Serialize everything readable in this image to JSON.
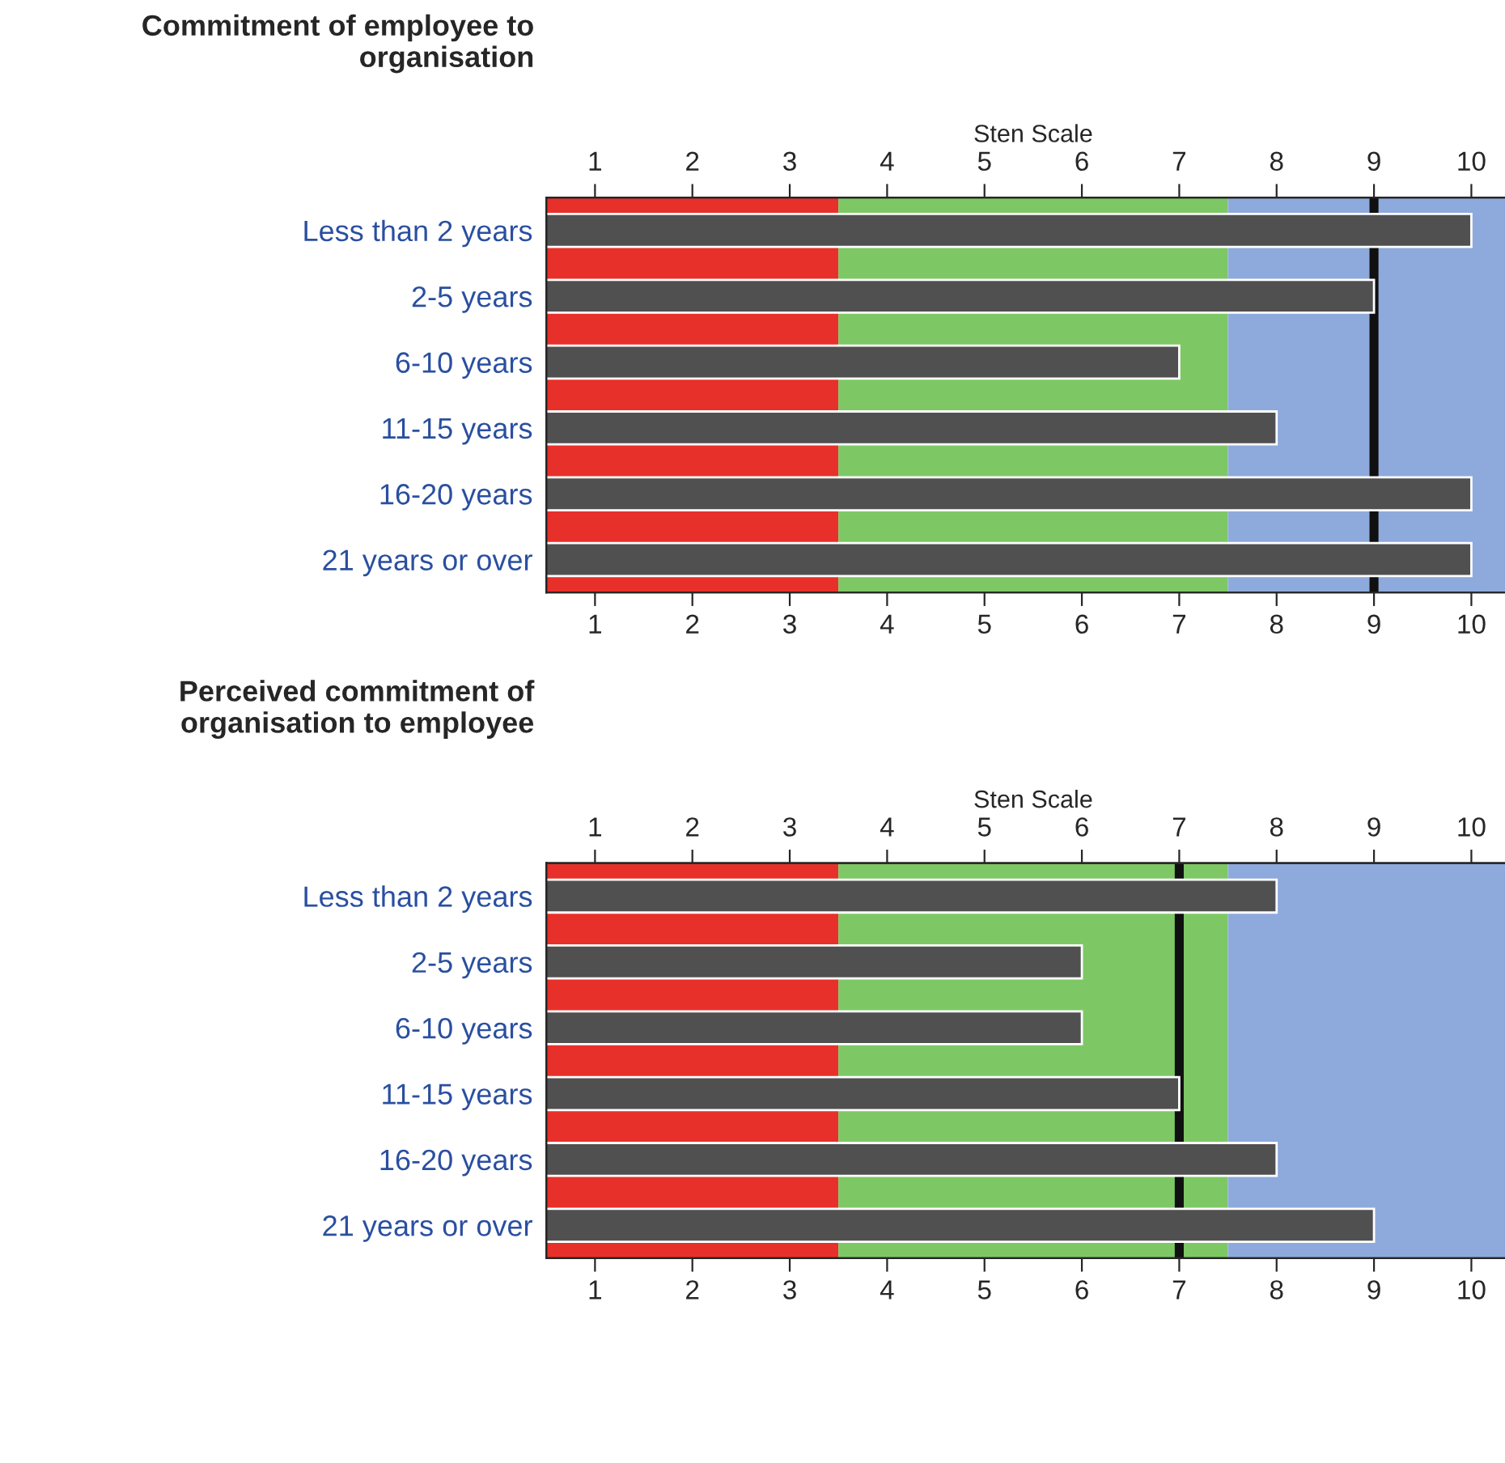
{
  "chart_data": [
    {
      "type": "bar",
      "orientation": "horizontal",
      "title": "Commitment of employee to\norganisation",
      "x2label": "Sten Scale",
      "categories": [
        "Less than 2 years",
        "2-5 years",
        "6-10 years",
        "11-15 years",
        "16-20 years",
        "21 years or over"
      ],
      "series": [
        {
          "color": "#505050",
          "values": [
            10,
            9,
            7,
            8,
            10,
            10
          ]
        }
      ],
      "xlim": [
        0.5,
        10.5
      ],
      "xticks": [
        1,
        2,
        3,
        4,
        5,
        6,
        7,
        8,
        9,
        10
      ],
      "x2lim": [
        0.5,
        10.5
      ],
      "x2ticks": [
        1,
        2,
        3,
        4,
        5,
        6,
        7,
        8,
        9,
        10
      ],
      "bands": [
        {
          "axis": "x",
          "from": 0.5,
          "to": 3.5,
          "color": "#e8302a"
        },
        {
          "axis": "x",
          "from": 3.5,
          "to": 7.5,
          "color": "#7dc865"
        },
        {
          "axis": "x",
          "from": 7.5,
          "to": 10.5,
          "color": "#8eaadc"
        }
      ],
      "ref_lines": [
        {
          "axis": "x",
          "value": 9,
          "color": "#101010"
        }
      ],
      "grid": false,
      "legend": false
    },
    {
      "type": "bar",
      "orientation": "horizontal",
      "title": "Perceived commitment of\norganisation to employee",
      "x2label": "Sten Scale",
      "categories": [
        "Less than 2 years",
        "2-5 years",
        "6-10 years",
        "11-15 years",
        "16-20 years",
        "21 years or over"
      ],
      "series": [
        {
          "color": "#505050",
          "values": [
            8,
            6,
            6,
            7,
            8,
            9
          ]
        }
      ],
      "xlim": [
        0.5,
        10.5
      ],
      "xticks": [
        1,
        2,
        3,
        4,
        5,
        6,
        7,
        8,
        9,
        10
      ],
      "x2lim": [
        0.5,
        10.5
      ],
      "x2ticks": [
        1,
        2,
        3,
        4,
        5,
        6,
        7,
        8,
        9,
        10
      ],
      "bands": [
        {
          "axis": "x",
          "from": 0.5,
          "to": 3.5,
          "color": "#e8302a"
        },
        {
          "axis": "x",
          "from": 3.5,
          "to": 7.5,
          "color": "#7dc865"
        },
        {
          "axis": "x",
          "from": 7.5,
          "to": 10.5,
          "color": "#8eaadc"
        }
      ],
      "ref_lines": [
        {
          "axis": "x",
          "value": 7,
          "color": "#101010"
        }
      ],
      "grid": false,
      "legend": false
    }
  ]
}
